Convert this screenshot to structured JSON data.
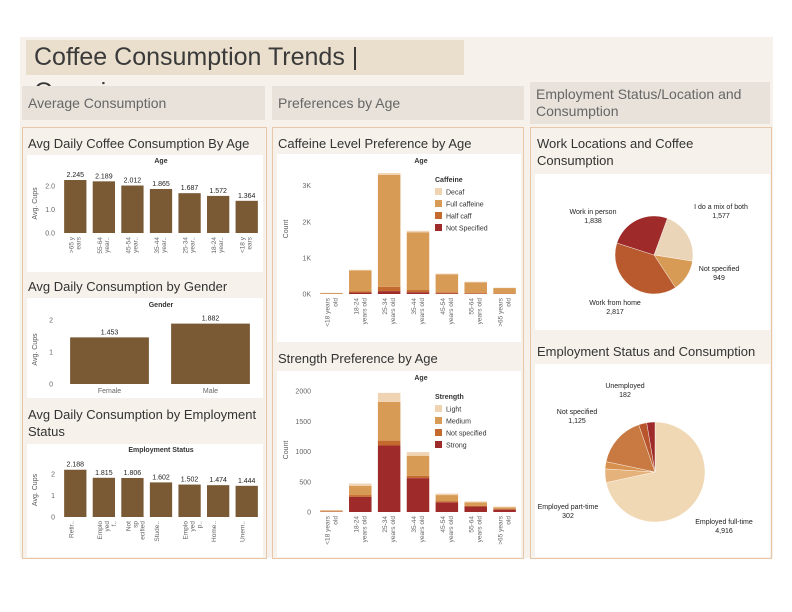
{
  "dashboard": {
    "title": "Coffee Consumption Trends | Overview",
    "sections": {
      "average": "Average Consumption",
      "preferences": "Preferences by Age",
      "employment": "Employment Status/Location and Consumption"
    }
  },
  "colors": {
    "bar_brown": "#7a5a34",
    "decaf": "#f0d3b3",
    "full_caffeine": "#d89b55",
    "half_caff": "#c46a2e",
    "not_specified": "#9e2a2a",
    "light": "#f0d3b3",
    "medium": "#d89b55",
    "strong": "#9e2a2a"
  },
  "chart_data": [
    {
      "id": "avg_by_age",
      "type": "bar",
      "title": "Avg Daily Coffee Consumption By Age",
      "header": "Age",
      "ylabel": "Avg. Cups",
      "ylim": [
        0,
        2.5
      ],
      "yticks": [
        "0.0",
        "1.0",
        "2.0"
      ],
      "categories": [
        ">65 y ears",
        "55-64 year..",
        "45-54 year..",
        "35-44 year..",
        "25-34 year..",
        "18-24 year..",
        "<18 y ears"
      ],
      "values": [
        2.245,
        2.189,
        2.012,
        1.865,
        1.687,
        1.572,
        1.364
      ],
      "labels": [
        "2.245",
        "2.189",
        "2.012",
        "1.865",
        "1.687",
        "1.572",
        "1.364"
      ]
    },
    {
      "id": "avg_by_gender",
      "type": "bar",
      "title": "Avg Daily Consumption by Gender",
      "header": "Gender",
      "ylabel": "Avg. Cups",
      "ylim": [
        0,
        2.15
      ],
      "yticks": [
        "0",
        "1",
        "2"
      ],
      "categories": [
        "Female",
        "Male"
      ],
      "values": [
        1.453,
        1.882
      ],
      "labels": [
        "1.453",
        "1.882"
      ]
    },
    {
      "id": "avg_by_employment",
      "type": "bar",
      "title": "Avg Daily Consumption by Employment Status",
      "header": "Employment Status",
      "ylabel": "Avg. Cups",
      "ylim": [
        0,
        2.5
      ],
      "yticks": [
        "0",
        "1",
        "2"
      ],
      "categories": [
        "Retir..",
        "Emplo yed f..",
        "Not sp ecified",
        "Stude..",
        "Emplo yed p..",
        "Home..",
        "Unem.."
      ],
      "values": [
        2.188,
        1.815,
        1.806,
        1.602,
        1.502,
        1.474,
        1.444
      ],
      "labels": [
        "2.188",
        "1.815",
        "1.806",
        "1.602",
        "1.502",
        "1.474",
        "1.444"
      ]
    },
    {
      "id": "caffeine_by_age",
      "type": "bar",
      "stacked": true,
      "title": "Caffeine Level Preference by Age",
      "header": "Age",
      "ylabel": "Count",
      "ylim": [
        0,
        3600
      ],
      "yticks": [
        "0K",
        "1K",
        "2K",
        "3K"
      ],
      "categories": [
        "<18 years old",
        "18-24 years old",
        "25-34 years old",
        "35-44 years old",
        "45-54 years old",
        "55-64 years old",
        ">65 years old"
      ],
      "legend_title": "Caffeine",
      "series": [
        {
          "name": "Not Specified",
          "values": [
            5,
            40,
            80,
            50,
            20,
            10,
            5
          ]
        },
        {
          "name": "Half caff",
          "values": [
            5,
            30,
            120,
            60,
            25,
            15,
            10
          ]
        },
        {
          "name": "Full caffeine",
          "values": [
            20,
            580,
            3100,
            1600,
            500,
            300,
            150
          ]
        },
        {
          "name": "Decaf",
          "values": [
            0,
            20,
            50,
            40,
            20,
            15,
            10
          ]
        }
      ],
      "legend_order": [
        "Decaf",
        "Full caffeine",
        "Half caff",
        "Not Specified"
      ]
    },
    {
      "id": "strength_by_age",
      "type": "bar",
      "stacked": true,
      "title": "Strength Preference by Age",
      "header": "Age",
      "ylabel": "Count",
      "ylim": [
        0,
        2050
      ],
      "yticks": [
        "0",
        "500",
        "1000",
        "1500",
        "2000"
      ],
      "categories": [
        "<18 years old",
        "18-24 years old",
        "25-34 years old",
        "35-44 years old",
        "45-54 years old",
        "55-64 years old",
        ">65 years old"
      ],
      "legend_title": "Strength",
      "series": [
        {
          "name": "Strong",
          "values": [
            5,
            250,
            1100,
            560,
            160,
            90,
            40
          ]
        },
        {
          "name": "Not specified",
          "values": [
            5,
            30,
            80,
            40,
            20,
            10,
            8
          ]
        },
        {
          "name": "Medium",
          "values": [
            15,
            150,
            640,
            330,
            100,
            60,
            30
          ]
        },
        {
          "name": "Light",
          "values": [
            5,
            40,
            150,
            60,
            25,
            15,
            12
          ]
        }
      ],
      "legend_order": [
        "Light",
        "Medium",
        "Not specified",
        "Strong"
      ]
    },
    {
      "id": "work_locations",
      "type": "pie",
      "title": "Work Locations and Coffee Consumption",
      "slices": [
        {
          "name": "I do a mix of both",
          "value": 1577,
          "label": "1,577",
          "color": "#ead5b8"
        },
        {
          "name": "Not specified",
          "value": 949,
          "label": "949",
          "color": "#d89b55"
        },
        {
          "name": "Work from home",
          "value": 2817,
          "label": "2,817",
          "color": "#b85a2e"
        },
        {
          "name": "Work in person",
          "value": 1838,
          "label": "1,838",
          "color": "#9e2a2a"
        }
      ]
    },
    {
      "id": "employment_status",
      "type": "pie",
      "title": "Employment Status and Consumption",
      "slices": [
        {
          "name": "Employed full-time",
          "value": 4916,
          "label": "4,916",
          "color": "#f0d8b5"
        },
        {
          "name": "Employed part-time",
          "value": 302,
          "label": "302",
          "color": "#e4b27a"
        },
        {
          "name": "",
          "value": 160,
          "label": "",
          "color": "#d8904e"
        },
        {
          "name": "Not specified",
          "value": 1125,
          "label": "1,125",
          "color": "#c97a43"
        },
        {
          "name": "",
          "value": 180,
          "label": "",
          "color": "#b8552c"
        },
        {
          "name": "Unemployed",
          "value": 182,
          "label": "182",
          "color": "#9e2a2a"
        }
      ]
    }
  ]
}
